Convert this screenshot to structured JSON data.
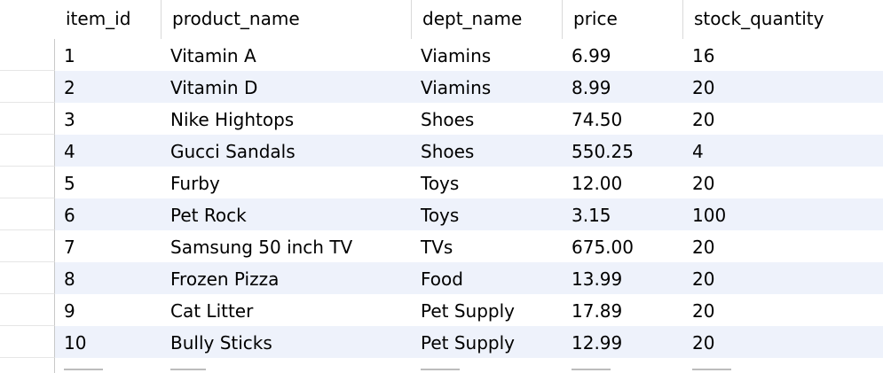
{
  "table": {
    "columns": [
      "item_id",
      "product_name",
      "dept_name",
      "price",
      "stock_quantity"
    ],
    "rows": [
      [
        "1",
        "Vitamin A",
        "Viamins",
        "6.99",
        "16"
      ],
      [
        "2",
        "Vitamin D",
        "Viamins",
        "8.99",
        "20"
      ],
      [
        "3",
        "Nike Hightops",
        "Shoes",
        "74.50",
        "20"
      ],
      [
        "4",
        "Gucci Sandals",
        "Shoes",
        "550.25",
        "4"
      ],
      [
        "5",
        "Furby",
        "Toys",
        "12.00",
        "20"
      ],
      [
        "6",
        "Pet Rock",
        "Toys",
        "3.15",
        "100"
      ],
      [
        "7",
        "Samsung 50 inch TV",
        "TVs",
        "675.00",
        "20"
      ],
      [
        "8",
        "Frozen Pizza",
        "Food",
        "13.99",
        "20"
      ],
      [
        "9",
        "Cat Litter",
        "Pet Supply",
        "17.89",
        "20"
      ],
      [
        "10",
        "Bully Sticks",
        "Pet Supply",
        "12.99",
        "20"
      ]
    ]
  },
  "colors": {
    "header_bg": "#ffffff",
    "row_alt_bg": "#eef2fb",
    "grid_line": "#d9d9d9"
  }
}
